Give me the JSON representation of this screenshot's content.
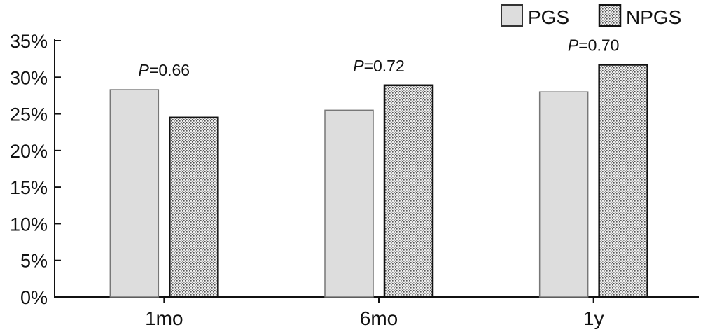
{
  "chart_data": {
    "type": "bar",
    "categories": [
      "1mo",
      "6mo",
      "1y"
    ],
    "series": [
      {
        "name": "PGS",
        "values": [
          28.3,
          25.5,
          28.0
        ],
        "color": "#dcdcdc",
        "pattern": "solid"
      },
      {
        "name": "NPGS",
        "values": [
          24.5,
          28.9,
          31.7
        ],
        "color": "#e6e6e6",
        "pattern": "dotted"
      }
    ],
    "yticks": [
      "0%",
      "5%",
      "10%",
      "15%",
      "20%",
      "25%",
      "30%",
      "35%"
    ],
    "ylim": [
      0,
      35
    ],
    "annotations": [
      {
        "category": "1mo",
        "italic": "P",
        "text": "=0.66"
      },
      {
        "category": "6mo",
        "italic": "P",
        "text": "=0.72"
      },
      {
        "category": "1y",
        "italic": "P",
        "text": "=0.70"
      }
    ],
    "legend_position": "top-right",
    "grid": false
  }
}
